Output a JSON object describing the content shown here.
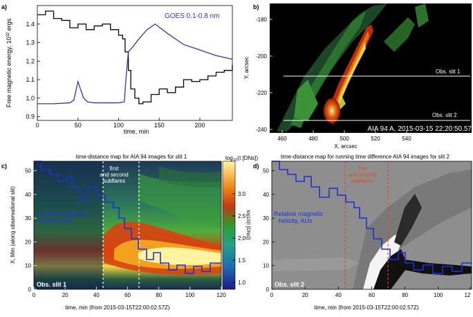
{
  "figure": {
    "panel_a": {
      "label": "a)",
      "ylabel": "Free magnetic energy, 10",
      "ylabel_exp": "32",
      "ylabel_unit": " ergs",
      "xlabel": "time, min",
      "xticks": [
        "0",
        "50",
        "100",
        "150",
        "200"
      ],
      "yticks": [
        "0.9",
        "1.0",
        "1.1",
        "1.2",
        "1.3",
        "1.4"
      ],
      "legend": "GOES 0.1-0.8 nm",
      "colors": {
        "energy": "#000000",
        "goes": "#3b2fb0"
      }
    },
    "panel_b": {
      "label": "b)",
      "ylabel": "Y, arcsec",
      "xlabel": "X, arcsec",
      "xticks": [
        "460",
        "480",
        "500",
        "520",
        "540"
      ],
      "yticks": [
        "-180",
        "-200",
        "-220",
        "-240"
      ],
      "slit1": "Obs. slit 1",
      "slit2": "Obs. slit 2",
      "caption": "AIA 94 A, 2015-03-15 22:20:50.57"
    },
    "panel_c": {
      "label": "c)",
      "title": "time-distance map for AIA 94 images for slit 1",
      "ylabel": "X, Mm (along observational slit)",
      "xlabel": "time, min (from 2015-03-15T22:00:02.57Z)",
      "xticks": [
        "0",
        "20",
        "40",
        "60",
        "80",
        "100",
        "120"
      ],
      "yticks": [
        "0",
        "10",
        "20",
        "30",
        "40",
        "50"
      ],
      "annot_line1": "first",
      "annot_line2": "and second",
      "annot_line3": "subflares",
      "helicity_line1": "Relative magnetic",
      "helicity_line2": "helicity, AUs",
      "slit_label": "Obs. slit 1",
      "colorbar_title": "log",
      "colorbar_title_sub": "10",
      "colorbar_title_rest": "(I [DNs])",
      "colorbar_axis": "log10(I [DNs])",
      "colorbar_ticks": [
        "1.0",
        "1.5",
        "2.0",
        "2.5",
        "3.0"
      ]
    },
    "panel_d": {
      "label": "d)",
      "title": "time-distance map for running time difference AIA 94 images for slit 2",
      "xlabel": "time, min (from 2015-03-15T22:00:02.57Z)",
      "xticks": [
        "0",
        "20",
        "40",
        "60",
        "80",
        "100",
        "12"
      ],
      "yticks": [
        "0",
        "10",
        "20",
        "30",
        "40",
        "50"
      ],
      "annot_line1": "first",
      "annot_line2": "and second",
      "annot_line3": "subflares",
      "helicity_line1": "Relative magnetic",
      "helicity_line2": "helicity, AUs",
      "slit_label": "Obs. slit 2"
    }
  },
  "chart_data": [
    {
      "type": "line",
      "panel": "a",
      "xlabel": "time, min",
      "ylabel": "Free magnetic energy, 10^32 ergs",
      "xlim": [
        0,
        240
      ],
      "ylim": [
        0.88,
        1.5
      ],
      "series": [
        {
          "name": "",
          "style": "step",
          "x": [
            0,
            10,
            20,
            30,
            40,
            50,
            60,
            70,
            80,
            90,
            100,
            105,
            108,
            112,
            115,
            120,
            125,
            130,
            140,
            150,
            160,
            170,
            180,
            190,
            200,
            210,
            220,
            230,
            240
          ],
          "y": [
            1.45,
            1.47,
            1.43,
            1.42,
            1.38,
            1.4,
            1.37,
            1.39,
            1.4,
            1.37,
            1.34,
            1.32,
            1.25,
            1.15,
            1.05,
            1.0,
            0.97,
            0.98,
            1.02,
            1.05,
            1.03,
            1.06,
            1.1,
            1.09,
            1.1,
            1.12,
            1.14,
            1.15,
            1.18
          ]
        },
        {
          "name": "GOES 0.1-0.8 nm",
          "x": [
            0,
            20,
            40,
            45,
            50,
            53,
            57,
            62,
            70,
            80,
            90,
            100,
            107,
            109,
            112,
            118,
            125,
            135,
            145,
            160,
            180,
            200,
            220,
            240
          ],
          "y": [
            0.97,
            0.97,
            0.975,
            0.99,
            1.09,
            1.05,
            1.0,
            0.98,
            0.975,
            0.975,
            0.975,
            0.975,
            0.98,
            1.1,
            1.25,
            1.28,
            1.32,
            1.37,
            1.4,
            1.35,
            1.29,
            1.26,
            1.23,
            1.21
          ]
        }
      ]
    }
  ]
}
